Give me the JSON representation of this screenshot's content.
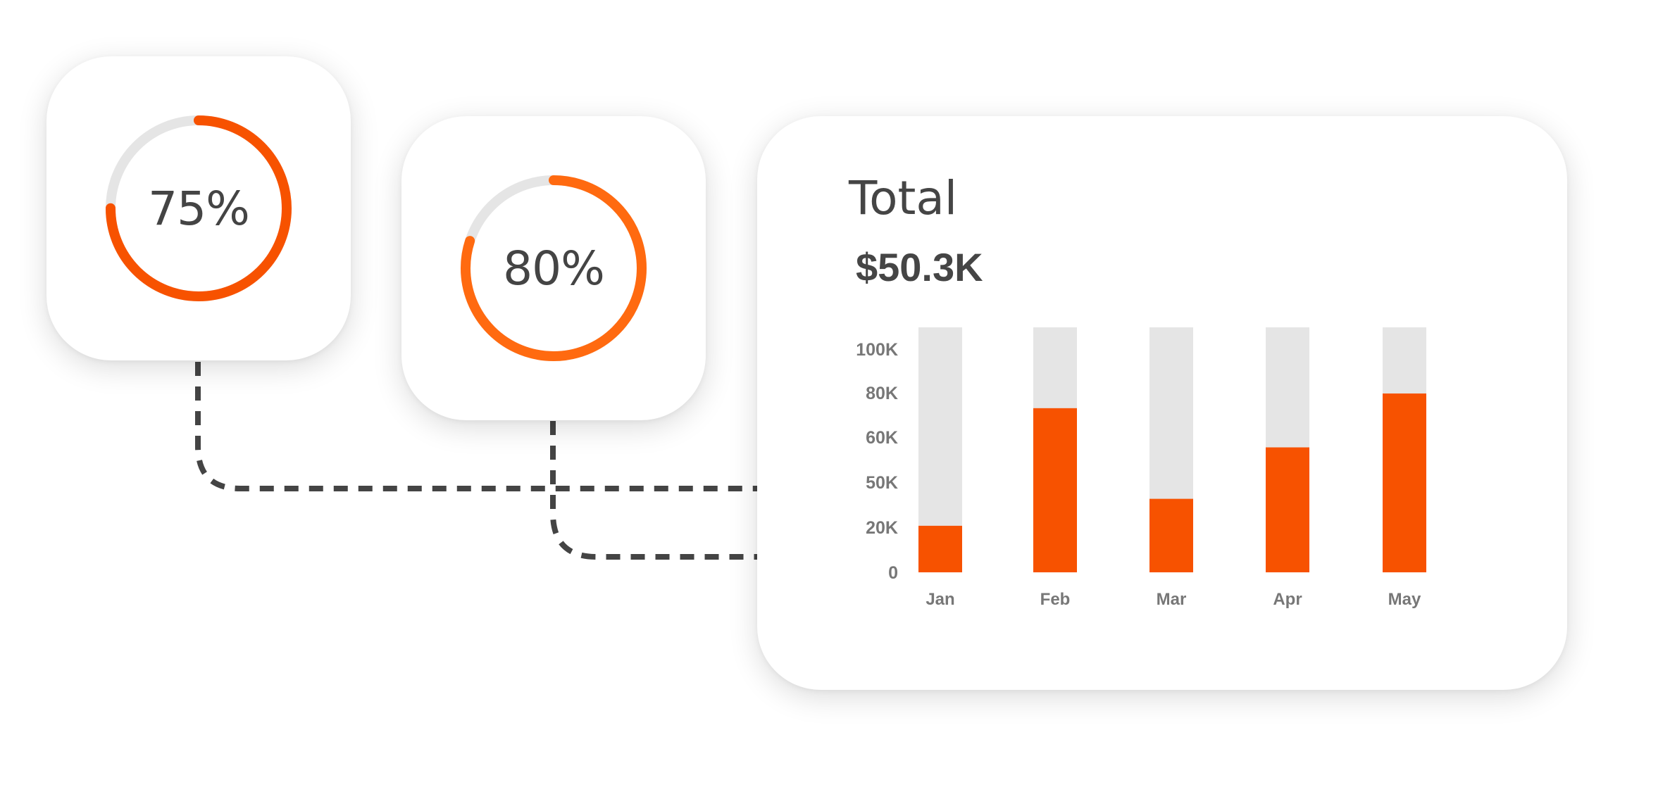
{
  "colors": {
    "accent": "#f75200",
    "accent_light": "#ff6a10",
    "track": "#e5e5e5",
    "connector": "#444444",
    "text": "#454545",
    "muted_text": "#777777"
  },
  "rings": [
    {
      "label": "75%",
      "value": 75
    },
    {
      "label": "80%",
      "value": 80
    }
  ],
  "summary": {
    "title": "Total",
    "value": "$50.3K"
  },
  "chart_data": {
    "type": "bar",
    "categories": [
      "Jan",
      "Feb",
      "Mar",
      "Apr",
      "May"
    ],
    "values": [
      19,
      67,
      30,
      51,
      73
    ],
    "yticks": [
      "0",
      "20K",
      "50K",
      "60K",
      "80K",
      "100K"
    ],
    "ylim": [
      0,
      100
    ],
    "stacked_background_track": true,
    "grid": false
  }
}
